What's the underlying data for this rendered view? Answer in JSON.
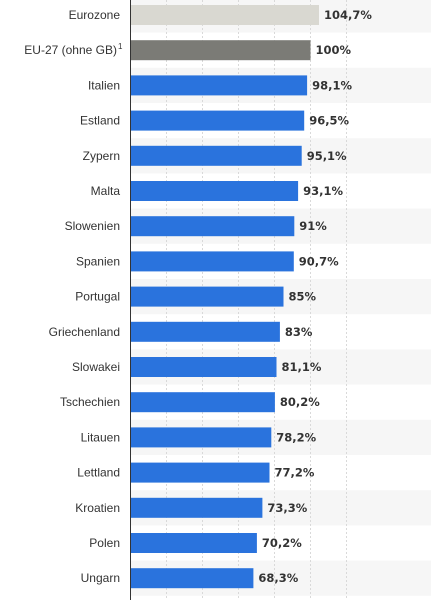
{
  "chart_data": {
    "type": "bar",
    "orientation": "horizontal",
    "categories": [
      "Eurozone",
      "EU-27 (ohne GB)",
      "Italien",
      "Estland",
      "Zypern",
      "Malta",
      "Slowenien",
      "Spanien",
      "Portugal",
      "Griechenland",
      "Slowakei",
      "Tschechien",
      "Litauen",
      "Lettland",
      "Kroatien",
      "Polen",
      "Ungarn"
    ],
    "category_superscripts": [
      "",
      "1",
      "",
      "",
      "",
      "",
      "",
      "",
      "",
      "",
      "",
      "",
      "",
      "",
      "",
      "",
      ""
    ],
    "values": [
      104.7,
      100,
      98.1,
      96.5,
      95.1,
      93.1,
      91,
      90.7,
      85,
      83,
      81.1,
      80.2,
      78.2,
      77.2,
      73.3,
      70.2,
      68.3
    ],
    "value_labels": [
      "104,7%",
      "100%",
      "98,1%",
      "96,5%",
      "95,1%",
      "93,1%",
      "91%",
      "90,7%",
      "85%",
      "83%",
      "81,1%",
      "80,2%",
      "78,2%",
      "77,2%",
      "73,3%",
      "70,2%",
      "68,3%"
    ],
    "bar_colors": [
      "#d9d8d1",
      "#7b7b76",
      "#2a73dd",
      "#2a73dd",
      "#2a73dd",
      "#2a73dd",
      "#2a73dd",
      "#2a73dd",
      "#2a73dd",
      "#2a73dd",
      "#2a73dd",
      "#2a73dd",
      "#2a73dd",
      "#2a73dd",
      "#2a73dd",
      "#2a73dd",
      "#2a73dd"
    ],
    "xlim": [
      0,
      130
    ],
    "grid_step": 20,
    "grid": true,
    "title": "",
    "xlabel": "",
    "ylabel": ""
  }
}
